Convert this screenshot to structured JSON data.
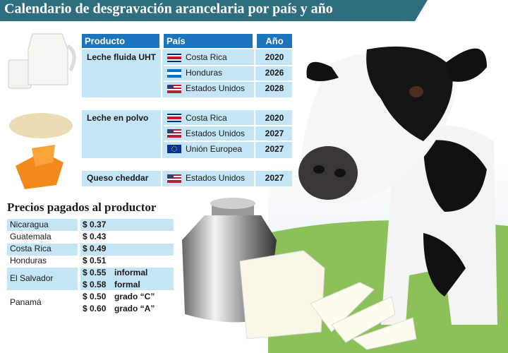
{
  "title": "Calendario de desgravación arancelaria por país y año",
  "tariff_table": {
    "headers": [
      "Producto",
      "País",
      "Año"
    ],
    "groups": [
      {
        "product": "Leche fluida UHT",
        "rows": [
          {
            "country": "Costa Rica",
            "year": 2020
          },
          {
            "country": "Honduras",
            "year": 2026
          },
          {
            "country": "Estados Unidos",
            "year": 2028
          }
        ]
      },
      {
        "product": "Leche en polvo",
        "rows": [
          {
            "country": "Costa Rica",
            "year": 2020
          },
          {
            "country": "Estados Unidos",
            "year": 2027
          },
          {
            "country": "Unión Europea",
            "year": 2027
          }
        ]
      },
      {
        "product": "Queso cheddar",
        "rows": [
          {
            "country": "Estados Unidos",
            "year": 2027
          }
        ]
      }
    ]
  },
  "prices": {
    "title": "Precios pagados al productor",
    "rows": [
      {
        "country": "Nicaragua",
        "entries": [
          {
            "price": "$ 0.37"
          }
        ]
      },
      {
        "country": "Guatemala",
        "entries": [
          {
            "price": "$ 0.43"
          }
        ]
      },
      {
        "country": "Costa Rica",
        "entries": [
          {
            "price": "$ 0.49"
          }
        ]
      },
      {
        "country": "Honduras",
        "entries": [
          {
            "price": "$ 0.51"
          }
        ]
      },
      {
        "country": "El Salvador",
        "entries": [
          {
            "price": "$ 0.55",
            "note": "informal"
          },
          {
            "price": "$ 0.58",
            "note": "formal"
          }
        ]
      },
      {
        "country": "Panamá",
        "entries": [
          {
            "price": "$ 0.50",
            "note": "grado “C”"
          },
          {
            "price": "$ 0.60",
            "note": "grado “A”"
          }
        ]
      }
    ]
  }
}
